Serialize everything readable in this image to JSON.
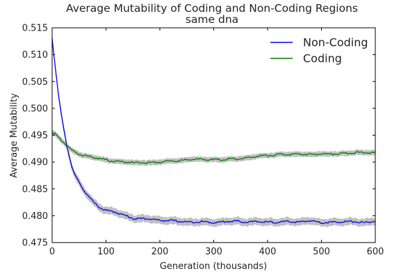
{
  "chart_data": {
    "type": "line",
    "title": "Average Mutability of Coding and Non-Coding Regions",
    "subtitle": "same dna",
    "xlabel": "Generation (thousands)",
    "ylabel": "Average Mutability",
    "xlim": [
      0,
      600
    ],
    "ylim": [
      0.475,
      0.515
    ],
    "xticks": [
      0,
      100,
      200,
      300,
      400,
      500,
      600
    ],
    "xtick_labels": [
      "0",
      "100",
      "200",
      "300",
      "400",
      "500",
      "600"
    ],
    "yticks": [
      0.475,
      0.48,
      0.485,
      0.49,
      0.495,
      0.5,
      0.505,
      0.51,
      0.515
    ],
    "ytick_labels": [
      "0.475",
      "0.480",
      "0.485",
      "0.490",
      "0.495",
      "0.500",
      "0.505",
      "0.510",
      "0.515"
    ],
    "grid": false,
    "legend_position": "top-right",
    "band_color": "#c0c0c0",
    "series": [
      {
        "name": "Non-Coding",
        "color": "#0000ee",
        "x": [
          0,
          5,
          10,
          15,
          20,
          25,
          30,
          35,
          40,
          50,
          60,
          70,
          80,
          90,
          100,
          110,
          120,
          130,
          140,
          150,
          160,
          170,
          180,
          190,
          200,
          220,
          240,
          260,
          280,
          300,
          320,
          340,
          360,
          380,
          400,
          420,
          440,
          460,
          480,
          500,
          520,
          540,
          560,
          580,
          600
        ],
        "y": [
          0.513,
          0.5085,
          0.504,
          0.5003,
          0.497,
          0.4942,
          0.4918,
          0.4898,
          0.488,
          0.4862,
          0.4846,
          0.4833,
          0.4822,
          0.4814,
          0.481,
          0.4808,
          0.4806,
          0.4802,
          0.4799,
          0.4795,
          0.4794,
          0.4795,
          0.4794,
          0.4793,
          0.4791,
          0.4791,
          0.4789,
          0.4788,
          0.4789,
          0.4787,
          0.4789,
          0.479,
          0.4788,
          0.4789,
          0.4788,
          0.4788,
          0.4789,
          0.4788,
          0.4791,
          0.4787,
          0.4788,
          0.4789,
          0.4789,
          0.4787,
          0.479
        ],
        "band": 0.0007
      },
      {
        "name": "Coding",
        "color": "#007a00",
        "x": [
          0,
          5,
          10,
          15,
          20,
          25,
          30,
          40,
          50,
          60,
          70,
          80,
          90,
          100,
          110,
          120,
          130,
          140,
          150,
          160,
          170,
          180,
          190,
          200,
          220,
          240,
          260,
          280,
          300,
          320,
          340,
          360,
          380,
          400,
          420,
          440,
          460,
          480,
          500,
          520,
          540,
          560,
          580,
          600
        ],
        "y": [
          0.4955,
          0.4953,
          0.4948,
          0.4943,
          0.4938,
          0.4933,
          0.4928,
          0.492,
          0.4915,
          0.4912,
          0.491,
          0.4908,
          0.4906,
          0.4904,
          0.4902,
          0.4901,
          0.49,
          0.49,
          0.4899,
          0.4899,
          0.4899,
          0.4899,
          0.4899,
          0.49,
          0.4902,
          0.4903,
          0.4905,
          0.4905,
          0.4904,
          0.4905,
          0.4906,
          0.4907,
          0.4911,
          0.4912,
          0.4914,
          0.4914,
          0.4915,
          0.4914,
          0.4915,
          0.4915,
          0.4916,
          0.4917,
          0.4918,
          0.4917
        ],
        "band": 0.0005
      }
    ]
  }
}
